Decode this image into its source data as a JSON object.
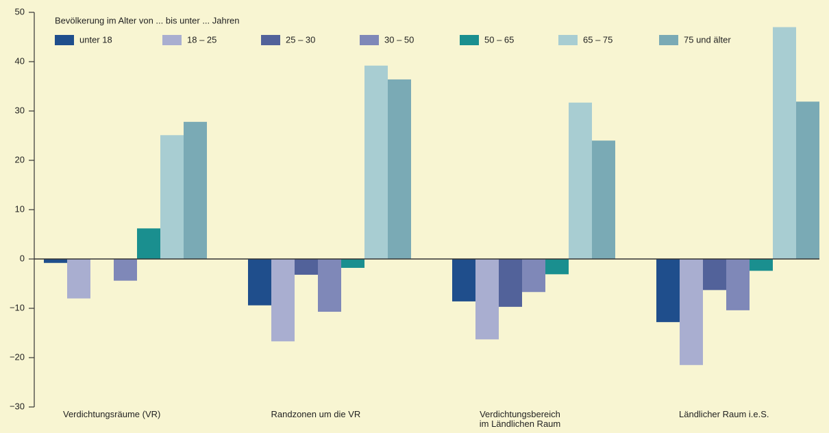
{
  "chart_data": {
    "type": "bar",
    "subtitle": "Bevölkerung im Alter von ... bis unter ... Jahren",
    "categories": [
      "Verdichtungsräume (VR)",
      "Randzonen um die VR",
      "Verdichtungsbereich im Ländlichen Raum",
      "Ländlicher Raum i.e.S."
    ],
    "series": [
      {
        "name": "unter 18",
        "color": "#1f4e8c",
        "values": [
          -0.8,
          -9.4,
          -8.6,
          -12.8
        ]
      },
      {
        "name": "18 – 25",
        "color": "#a9aed0",
        "values": [
          -8,
          -16.7,
          -16.3,
          -21.5
        ]
      },
      {
        "name": "25 – 30",
        "color": "#52629a",
        "values": [
          0,
          -3.2,
          -9.7,
          -6.3
        ]
      },
      {
        "name": "30 – 50",
        "color": "#7f88b8",
        "values": [
          -4.4,
          -10.7,
          -6.7,
          -10.4
        ]
      },
      {
        "name": "50 – 65",
        "color": "#1a8f8f",
        "values": [
          6.2,
          -1.8,
          -3.1,
          -2.4
        ]
      },
      {
        "name": "65 – 75",
        "color": "#a8cdd2",
        "values": [
          25.1,
          39.2,
          31.7,
          47
        ]
      },
      {
        "name": "75 und älter",
        "color": "#7aaab5",
        "values": [
          27.8,
          36.4,
          24,
          31.9
        ]
      }
    ],
    "ylim": [
      -30,
      50
    ],
    "yticks": [
      {
        "value": -30,
        "label": "−30"
      },
      {
        "value": -20,
        "label": "−20"
      },
      {
        "value": -10,
        "label": "−10"
      },
      0,
      10,
      20,
      30,
      40,
      50
    ],
    "grid": false
  }
}
